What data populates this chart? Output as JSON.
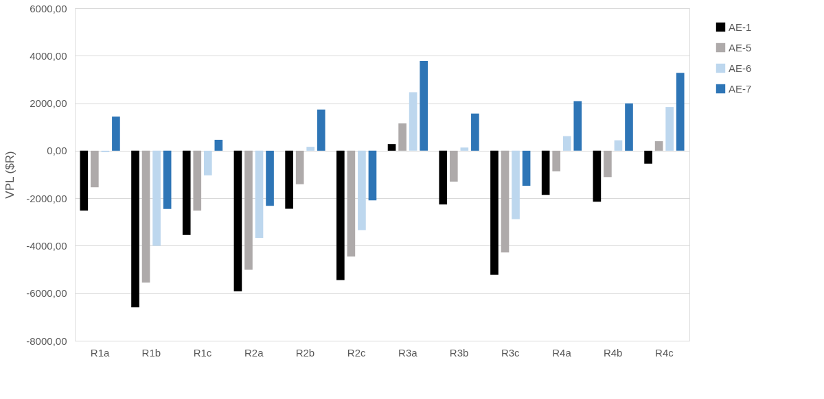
{
  "chart_data": {
    "type": "bar",
    "ylabel": "VPL ($R)",
    "categories": [
      "R1a",
      "R1b",
      "R1c",
      "R2a",
      "R2b",
      "R2c",
      "R3a",
      "R3b",
      "R3c",
      "R4a",
      "R4b",
      "R4c"
    ],
    "series": [
      {
        "name": "AE-1",
        "color": "#000000",
        "values": [
          -2520,
          -6590,
          -3550,
          -5920,
          -2445,
          -5445,
          280,
          -2260,
          -5225,
          -1860,
          -2150,
          -545
        ]
      },
      {
        "name": "AE-5",
        "color": "#aeaaaa",
        "values": [
          -1540,
          -5550,
          -2520,
          -5015,
          -1410,
          -4460,
          1150,
          -1300,
          -4285,
          -870,
          -1110,
          400
        ]
      },
      {
        "name": "AE-6",
        "color": "#bdd7ee",
        "values": [
          -60,
          -4000,
          -1035,
          -3670,
          165,
          -3345,
          2465,
          135,
          -2885,
          615,
          440,
          1840
        ]
      },
      {
        "name": "AE-7",
        "color": "#2e75b6",
        "values": [
          1440,
          -2450,
          460,
          -2320,
          1735,
          -2090,
          3780,
          1565,
          -1475,
          2090,
          1995,
          3280
        ]
      }
    ],
    "ylim": [
      -8000,
      6000
    ],
    "yticks": [
      {
        "value": -8000,
        "label": "-8000,00"
      },
      {
        "value": -6000,
        "label": "-6000,00"
      },
      {
        "value": -4000,
        "label": "-4000,00"
      },
      {
        "value": -2000,
        "label": "-2000,00"
      },
      {
        "value": 0,
        "label": "0,00"
      },
      {
        "value": 2000,
        "label": "2000,00"
      },
      {
        "value": 4000,
        "label": "4000,00"
      },
      {
        "value": 6000,
        "label": "6000,00"
      }
    ],
    "grid": "y",
    "legend": "right"
  }
}
